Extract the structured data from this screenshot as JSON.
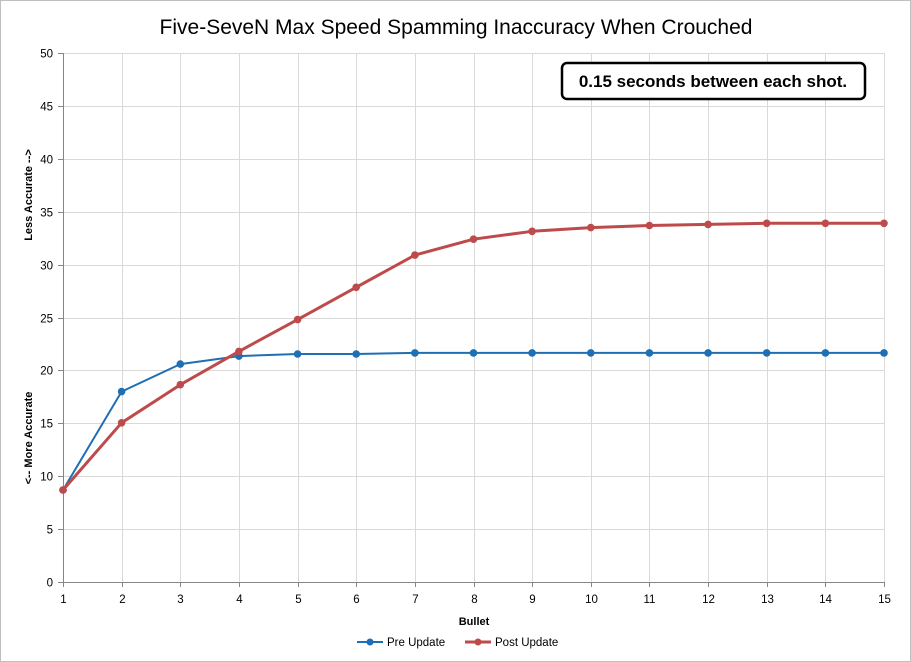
{
  "chart_data": {
    "type": "line",
    "title": "Five-SeveN Max Speed Spamming Inaccuracy When Crouched",
    "xlabel": "Bullet",
    "ylabel_top": "Less Accurate -->",
    "ylabel_bottom": "<-- More Accurate",
    "x": [
      1,
      2,
      3,
      4,
      5,
      6,
      7,
      8,
      9,
      10,
      11,
      12,
      13,
      14,
      15
    ],
    "ylim": [
      0,
      50
    ],
    "ytick_step": 5,
    "grid": true,
    "legend_position": "bottom-center",
    "series": [
      {
        "name": "Pre Update",
        "color": "#1f6fb4",
        "values": [
          8.7,
          18.0,
          20.6,
          21.35,
          21.55,
          21.55,
          21.65,
          21.65,
          21.65,
          21.65,
          21.65,
          21.65,
          21.65,
          21.65,
          21.65
        ]
      },
      {
        "name": "Post Update",
        "color": "#bd4b4b",
        "values": [
          8.7,
          15.05,
          18.65,
          21.8,
          24.8,
          27.85,
          30.9,
          32.4,
          33.15,
          33.5,
          33.7,
          33.8,
          33.9,
          33.9,
          33.9
        ]
      }
    ],
    "annotation": "0.15 seconds between each shot."
  }
}
